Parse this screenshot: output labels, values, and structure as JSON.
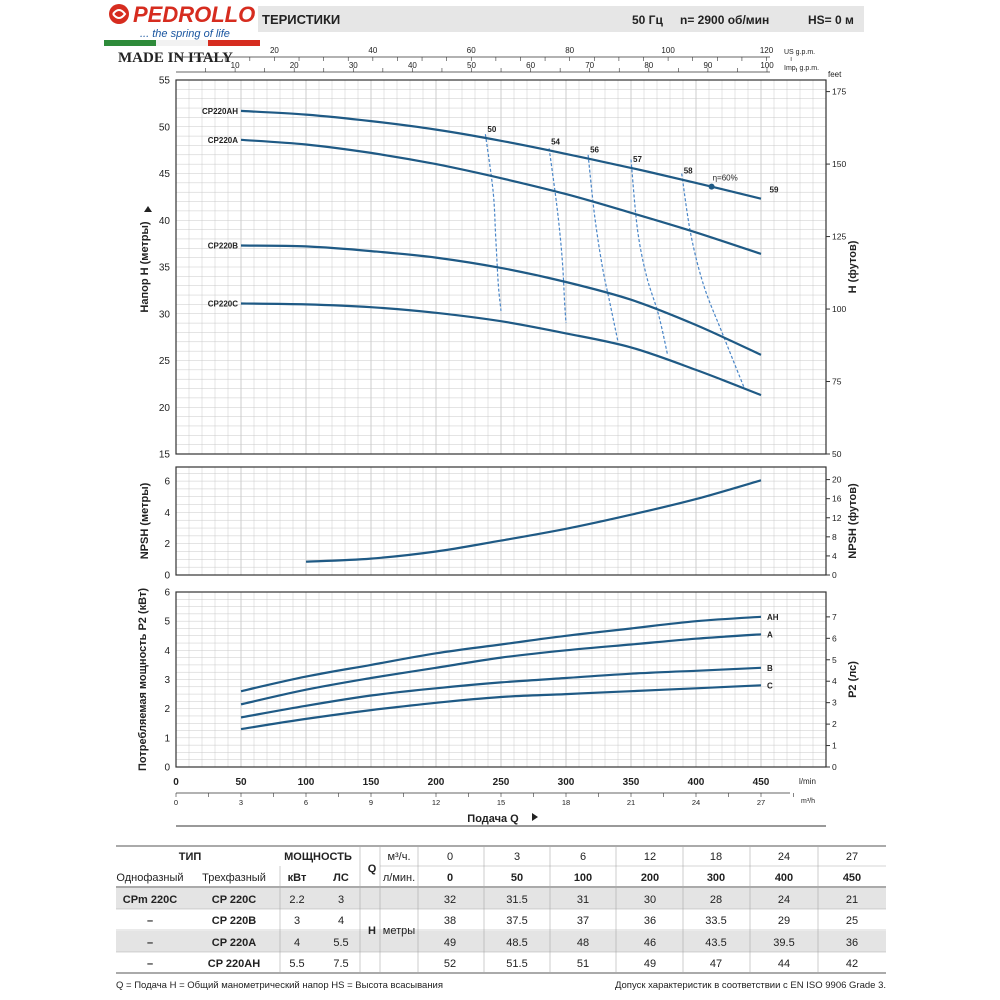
{
  "header": {
    "brand": "PEDROLLO",
    "tagline": "... the spring of life",
    "made_in": "MADE IN ITALY",
    "title": "ТЕРИСТИКИ",
    "frequency": "50 Гц",
    "speed": "n= 2900 об/мин",
    "hs": "HS= 0 м"
  },
  "colors": {
    "curve": "#1f5a85",
    "efficiency": "#4a86c8",
    "grid": "#c9c9c9",
    "header_band": "#e6e6e6",
    "table_shade": "#e4e4e4",
    "brand_red": "#d62c1f",
    "flag_green": "#2e8b3a"
  },
  "chart_data": [
    {
      "id": "head",
      "type": "line",
      "ylabel": "Напор H (метры)",
      "y2label": "H (футов)",
      "xlim": [
        0,
        500
      ],
      "ylim": [
        15,
        55
      ],
      "y_ticks": [
        15,
        20,
        25,
        30,
        35,
        40,
        45,
        50,
        55
      ],
      "y2_ticks": [
        50,
        75,
        100,
        125,
        150,
        175
      ],
      "y2_unit": "feet",
      "top_axis_us_label": "US g.p.m.",
      "top_axis_us_ticks": [
        20,
        40,
        60,
        80,
        100,
        120
      ],
      "top_axis_imp_label": "Imp. g.p.m.",
      "top_axis_imp_ticks": [
        10,
        20,
        30,
        40,
        50,
        60,
        70,
        80,
        90,
        100
      ],
      "grid": true,
      "series": [
        {
          "name": "CP220AH",
          "x": [
            50,
            100,
            150,
            200,
            250,
            300,
            350,
            400,
            450
          ],
          "y": [
            51.7,
            51.3,
            50.6,
            49.7,
            48.5,
            47.1,
            45.6,
            44.0,
            42.3
          ]
        },
        {
          "name": "CP220A",
          "x": [
            50,
            100,
            150,
            200,
            250,
            300,
            350,
            400,
            450
          ],
          "y": [
            48.6,
            48.1,
            47.2,
            46.0,
            44.5,
            42.8,
            40.8,
            38.7,
            36.4
          ]
        },
        {
          "name": "CP220B",
          "x": [
            50,
            100,
            150,
            200,
            250,
            300,
            350,
            400,
            450
          ],
          "y": [
            37.3,
            37.2,
            36.7,
            36.0,
            34.9,
            33.4,
            31.5,
            28.8,
            25.6
          ]
        },
        {
          "name": "CP220C",
          "x": [
            50,
            100,
            150,
            200,
            250,
            300,
            350,
            400,
            450
          ],
          "y": [
            31.1,
            31.0,
            30.7,
            30.1,
            29.2,
            27.9,
            26.4,
            24.0,
            21.3
          ]
        }
      ],
      "efficiency_labels": [
        "50",
        "54",
        "56",
        "57",
        "58",
        "59"
      ],
      "efficiency_note": "η=60%",
      "efficiency_lines": [
        {
          "x": [
            238,
            244,
            246,
            248,
            250
          ],
          "y": [
            49.2,
            43.0,
            38.0,
            33.0,
            30.3
          ]
        },
        {
          "x": [
            287,
            293,
            297,
            299,
            300
          ],
          "y": [
            47.7,
            41.5,
            36.0,
            31.0,
            29.0
          ]
        },
        {
          "x": [
            317,
            322,
            328,
            334,
            340
          ],
          "y": [
            47.0,
            40.5,
            35.0,
            31.0,
            27.0
          ]
        },
        {
          "x": [
            350,
            355,
            362,
            371,
            378
          ],
          "y": [
            46.5,
            39.0,
            34.0,
            30.0,
            25.7
          ]
        },
        {
          "x": [
            389,
            396,
            406,
            420,
            437
          ],
          "y": [
            45.0,
            38.5,
            33.0,
            28.0,
            22.1
          ]
        }
      ],
      "efficiency_point": {
        "x": 412,
        "y": 43.6
      }
    },
    {
      "id": "npsh",
      "type": "line",
      "ylabel": "NPSH (метры)",
      "y2label": "NPSH (футов)",
      "xlim": [
        0,
        500
      ],
      "ylim": [
        0,
        6.9
      ],
      "y_ticks": [
        0,
        2,
        4,
        6
      ],
      "y2_ticks": [
        0,
        4,
        8,
        12,
        16,
        20
      ],
      "grid": true,
      "series": [
        {
          "name": "",
          "x": [
            100,
            150,
            200,
            250,
            300,
            350,
            400,
            450
          ],
          "y": [
            0.85,
            1.05,
            1.5,
            2.2,
            2.95,
            3.85,
            4.85,
            6.05
          ]
        }
      ]
    },
    {
      "id": "power",
      "type": "line",
      "ylabel": "Потребляемая мощность P2 (кВт)",
      "y2label": "P2 (лс)",
      "xlabel": "Подача Q",
      "xlim": [
        0,
        500
      ],
      "ylim": [
        0,
        6
      ],
      "y_ticks": [
        0,
        1,
        2,
        3,
        4,
        5,
        6
      ],
      "y2_ticks": [
        0,
        1,
        2,
        3,
        4,
        5,
        6,
        7
      ],
      "x_ticks": [
        0,
        50,
        100,
        150,
        200,
        250,
        300,
        350,
        400,
        450
      ],
      "x_unit": "l/min",
      "x2_ticks": [
        0,
        3,
        6,
        9,
        12,
        15,
        18,
        21,
        24,
        27
      ],
      "x2_unit": "m³/h",
      "grid": true,
      "series": [
        {
          "name": "AH",
          "x": [
            50,
            100,
            150,
            200,
            250,
            300,
            350,
            400,
            450
          ],
          "y": [
            2.6,
            3.1,
            3.5,
            3.9,
            4.2,
            4.5,
            4.75,
            5.0,
            5.15
          ]
        },
        {
          "name": "A",
          "x": [
            50,
            100,
            150,
            200,
            250,
            300,
            350,
            400,
            450
          ],
          "y": [
            2.15,
            2.65,
            3.05,
            3.4,
            3.75,
            4.0,
            4.2,
            4.4,
            4.55
          ]
        },
        {
          "name": "B",
          "x": [
            50,
            100,
            150,
            200,
            250,
            300,
            350,
            400,
            450
          ],
          "y": [
            1.7,
            2.1,
            2.45,
            2.7,
            2.9,
            3.05,
            3.2,
            3.3,
            3.4
          ]
        },
        {
          "name": "C",
          "x": [
            50,
            100,
            150,
            200,
            250,
            300,
            350,
            400,
            450
          ],
          "y": [
            1.3,
            1.65,
            1.95,
            2.2,
            2.4,
            2.5,
            2.6,
            2.7,
            2.8
          ]
        }
      ]
    },
    {
      "id": "perf_table",
      "type": "table",
      "type_header": "ТИП",
      "power_header": "МОЩНОСТЬ",
      "single_phase_header": "Однофазный",
      "three_phase_header": "Трехфазный",
      "kw_header": "кВт",
      "hp_header": "ЛС",
      "q_header": "Q",
      "q_m3_label": "м³/ч.",
      "q_lmin_label": "л/мин.",
      "h_label": "H",
      "h_unit": "метры",
      "q_m3": [
        "0",
        "3",
        "6",
        "12",
        "18",
        "24",
        "27"
      ],
      "q_lmin": [
        "0",
        "50",
        "100",
        "200",
        "300",
        "400",
        "450"
      ],
      "rows": [
        {
          "single": "CPm 220C",
          "three": "CP 220C",
          "kw": "2.2",
          "hp": "3",
          "h": [
            "32",
            "31.5",
            "31",
            "30",
            "28",
            "24",
            "21"
          ]
        },
        {
          "single": "–",
          "three": "CP 220B",
          "kw": "3",
          "hp": "4",
          "h": [
            "38",
            "37.5",
            "37",
            "36",
            "33.5",
            "29",
            "25"
          ]
        },
        {
          "single": "–",
          "three": "CP 220A",
          "kw": "4",
          "hp": "5.5",
          "h": [
            "49",
            "48.5",
            "48",
            "46",
            "43.5",
            "39.5",
            "36"
          ]
        },
        {
          "single": "–",
          "three": "CP 220AH",
          "kw": "5.5",
          "hp": "7.5",
          "h": [
            "52",
            "51.5",
            "51",
            "49",
            "47",
            "44",
            "42"
          ]
        }
      ]
    }
  ],
  "footer": {
    "legend": "Q = Подача  H = Общий манометрический напор  HS = Высота всасывания",
    "standard": "Допуск характеристик в соответствии с EN ISO 9906 Grade 3."
  }
}
